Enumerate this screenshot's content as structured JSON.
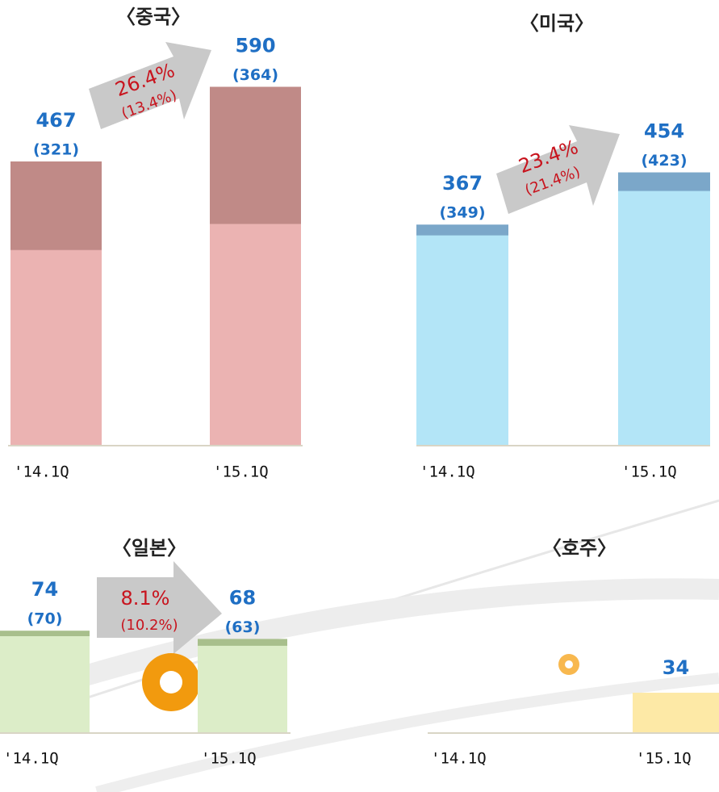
{
  "chart_data": [
    {
      "type": "bar",
      "title": "〈중국〉",
      "categories": [
        "'14.1Q",
        "'15.1Q"
      ],
      "ylim": [
        0,
        600
      ],
      "series": [
        {
          "color": "#c08a87",
          "values": [
            467,
            590
          ]
        },
        {
          "color": "#ebb3b2",
          "values": [
            321,
            364
          ],
          "value_labels": [
            "(321)",
            "(364)"
          ]
        }
      ],
      "growth_label": "26.4%",
      "growth_sub_label": "(13.4%)"
    },
    {
      "type": "bar",
      "title": "〈미국〉",
      "categories": [
        "'14.1Q",
        "'15.1Q"
      ],
      "ylim": [
        0,
        600
      ],
      "series": [
        {
          "color": "#7ba7c9",
          "values": [
            367,
            454
          ]
        },
        {
          "color": "#b3e5f7",
          "values": [
            349,
            423
          ],
          "value_labels": [
            "(349)",
            "(423)"
          ]
        }
      ],
      "growth_label": "23.4%",
      "growth_sub_label": "(21.4%)"
    },
    {
      "type": "bar",
      "title": "〈일본〉",
      "categories": [
        "'14.1Q",
        "'15.1Q"
      ],
      "ylim": [
        0,
        100
      ],
      "series": [
        {
          "color": "#a8bf8c",
          "values": [
            74,
            68
          ]
        },
        {
          "color": "#dcedc8",
          "values": [
            70,
            63
          ],
          "value_labels": [
            "(70)",
            "(63)"
          ]
        }
      ],
      "growth_label": "8.1%",
      "growth_sub_label": "(10.2%)"
    },
    {
      "type": "bar",
      "title": "〈호주〉",
      "categories": [
        "'14.1Q",
        "'15.1Q"
      ],
      "ylim": [
        0,
        100
      ],
      "series": [
        {
          "color": "#fde9a6",
          "values": [
            null,
            34
          ]
        }
      ]
    }
  ]
}
